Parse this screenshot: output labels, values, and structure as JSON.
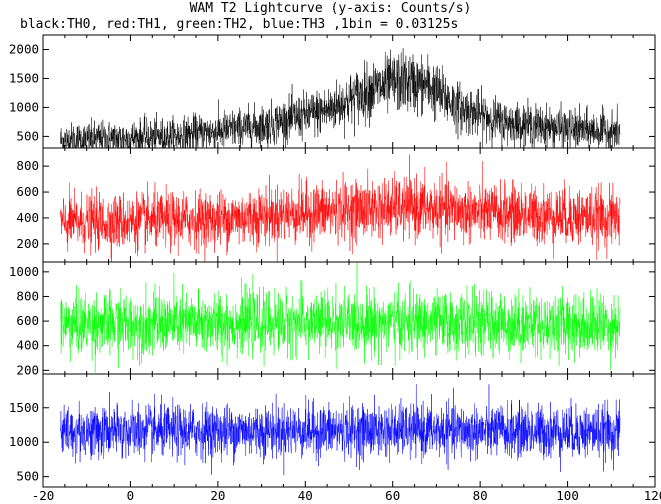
{
  "chart_data": {
    "type": "line",
    "title": "WAM T2 Lightcurve (y-axis: Counts/s)",
    "subtitle": "black:TH0, red:TH1, green:TH2, blue:TH3 ,1bin = 0.03125s",
    "xlim": [
      -20,
      120
    ],
    "x_ticks": [
      -20,
      0,
      20,
      40,
      60,
      80,
      100,
      120
    ],
    "x_range_data": [
      -16,
      112
    ],
    "panels": [
      {
        "id": "TH0",
        "color": "#000000",
        "ylim": [
          300,
          2250
        ],
        "y_ticks": [
          500,
          1000,
          1500,
          2000
        ],
        "profile": [
          [
            -16,
            430
          ],
          [
            10,
            500
          ],
          [
            30,
            680
          ],
          [
            45,
            950
          ],
          [
            55,
            1300
          ],
          [
            62,
            1450
          ],
          [
            68,
            1380
          ],
          [
            75,
            1000
          ],
          [
            85,
            750
          ],
          [
            100,
            620
          ],
          [
            112,
            580
          ]
        ],
        "noise": [
          150,
          260
        ]
      },
      {
        "id": "TH1",
        "color": "#ff0000",
        "ylim": [
          60,
          940
        ],
        "y_ticks": [
          200,
          400,
          600,
          800
        ],
        "profile": [
          [
            -16,
            360
          ],
          [
            20,
            390
          ],
          [
            40,
            440
          ],
          [
            55,
            470
          ],
          [
            65,
            480
          ],
          [
            80,
            440
          ],
          [
            112,
            400
          ]
        ],
        "noise": [
          105,
          115
        ]
      },
      {
        "id": "TH2",
        "color": "#00ff00",
        "ylim": [
          170,
          1080
        ],
        "y_ticks": [
          200,
          400,
          600,
          800,
          1000
        ],
        "profile": [
          [
            -16,
            570
          ],
          [
            50,
            590
          ],
          [
            112,
            570
          ]
        ],
        "noise": [
          125,
          125
        ]
      },
      {
        "id": "TH3",
        "color": "#0000ff",
        "ylim": [
          350,
          1990
        ],
        "y_ticks": [
          500,
          1000,
          1500
        ],
        "profile": [
          [
            -16,
            1150
          ],
          [
            50,
            1170
          ],
          [
            112,
            1150
          ]
        ],
        "noise": [
          190,
          190
        ]
      }
    ]
  }
}
